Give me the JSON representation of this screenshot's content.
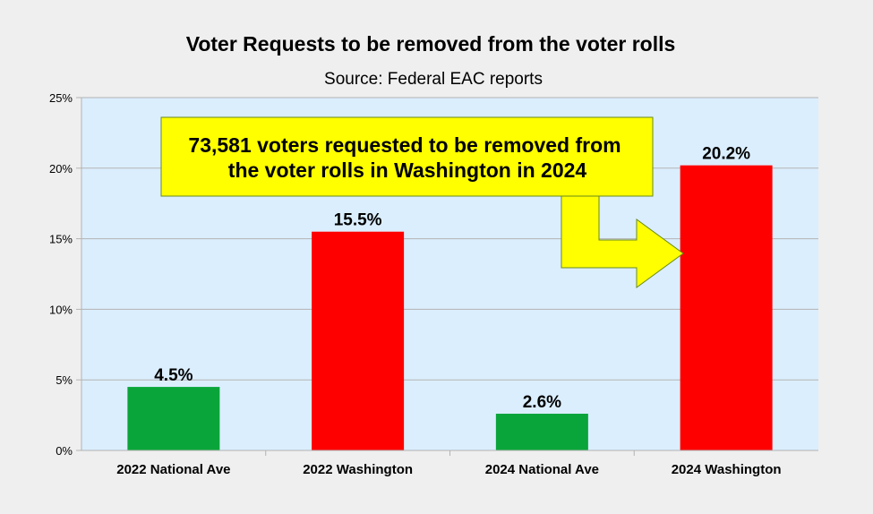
{
  "chart_data": {
    "type": "bar",
    "title": "Voter Requests to be removed from the voter rolls",
    "subtitle": "Source: Federal EAC reports",
    "categories": [
      "2022 National Ave",
      "2022 Washington",
      "2024 National Ave",
      "2024 Washington"
    ],
    "values": [
      4.5,
      15.5,
      2.6,
      20.2
    ],
    "data_labels": [
      "4.5%",
      "15.5%",
      "2.6%",
      "20.2%"
    ],
    "bar_colors": [
      "#0aa53a",
      "#ff0000",
      "#0aa53a",
      "#ff0000"
    ],
    "ylim": [
      0,
      25
    ],
    "yticks": [
      0,
      5,
      10,
      15,
      20,
      25
    ],
    "ytick_labels": [
      "0%",
      "5%",
      "10%",
      "15%",
      "20%",
      "25%"
    ],
    "xlabel": "",
    "ylabel": "",
    "grid": true,
    "plot_background": "#dbeefe",
    "annotation": {
      "lines": [
        "73,581 voters requested to be removed from",
        "the voter rolls in Washington in 2024"
      ],
      "fill_color": "#ffff00",
      "border_color": "#6a8a1a",
      "points_to": "2024 Washington"
    }
  }
}
